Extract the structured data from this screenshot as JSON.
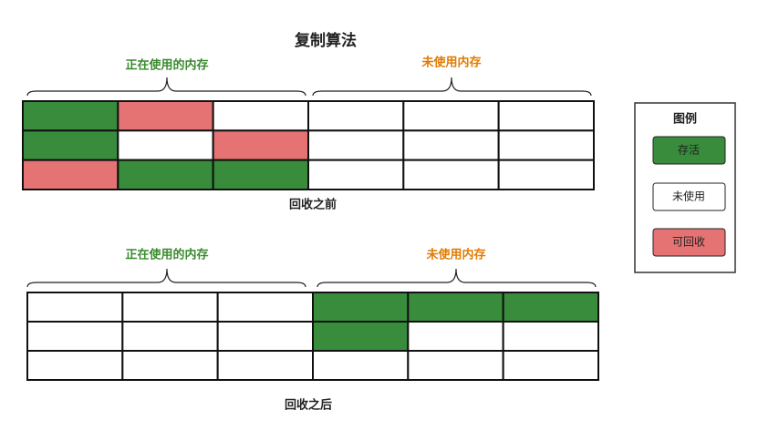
{
  "title": "复制算法",
  "before": {
    "used_label": "正在使用的内存",
    "unused_label": "未使用内存",
    "caption": "回收之前"
  },
  "after": {
    "used_label": "正在使用的内存",
    "unused_label": "未使用内存",
    "caption": "回收之后"
  },
  "legend": {
    "title": "图例",
    "items": [
      "存活",
      "未使用",
      "可回收"
    ]
  }
}
